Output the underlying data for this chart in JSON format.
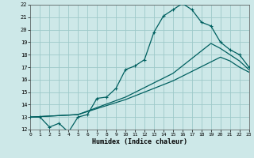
{
  "xlabel": "Humidex (Indice chaleur)",
  "xlim": [
    0,
    23
  ],
  "ylim": [
    12,
    22
  ],
  "xticks": [
    0,
    1,
    2,
    3,
    4,
    5,
    6,
    7,
    8,
    9,
    10,
    11,
    12,
    13,
    14,
    15,
    16,
    17,
    18,
    19,
    20,
    21,
    22,
    23
  ],
  "yticks": [
    12,
    13,
    14,
    15,
    16,
    17,
    18,
    19,
    20,
    21,
    22
  ],
  "background_color": "#cde8e8",
  "grid_color": "#9ec9c9",
  "line_color": "#006060",
  "line1_x": [
    0,
    1,
    2,
    3,
    4,
    5,
    6,
    7,
    8,
    9,
    10,
    11,
    12,
    13,
    14,
    15,
    16,
    17,
    18,
    19,
    20,
    21,
    22,
    23
  ],
  "line1_y": [
    13.0,
    13.0,
    12.2,
    12.5,
    11.8,
    13.0,
    13.2,
    14.5,
    14.6,
    15.3,
    16.8,
    17.1,
    17.6,
    19.8,
    21.1,
    21.6,
    22.1,
    21.6,
    20.6,
    20.3,
    19.0,
    18.4,
    18.0,
    17.0
  ],
  "line2_x": [
    0,
    5,
    10,
    15,
    19,
    20,
    21,
    22,
    23
  ],
  "line2_y": [
    13.0,
    13.2,
    14.6,
    16.5,
    18.9,
    18.5,
    18.0,
    17.5,
    16.8
  ],
  "line3_x": [
    0,
    5,
    10,
    15,
    20,
    21,
    22,
    23
  ],
  "line3_y": [
    13.0,
    13.2,
    14.4,
    15.9,
    17.8,
    17.5,
    17.0,
    16.6
  ]
}
